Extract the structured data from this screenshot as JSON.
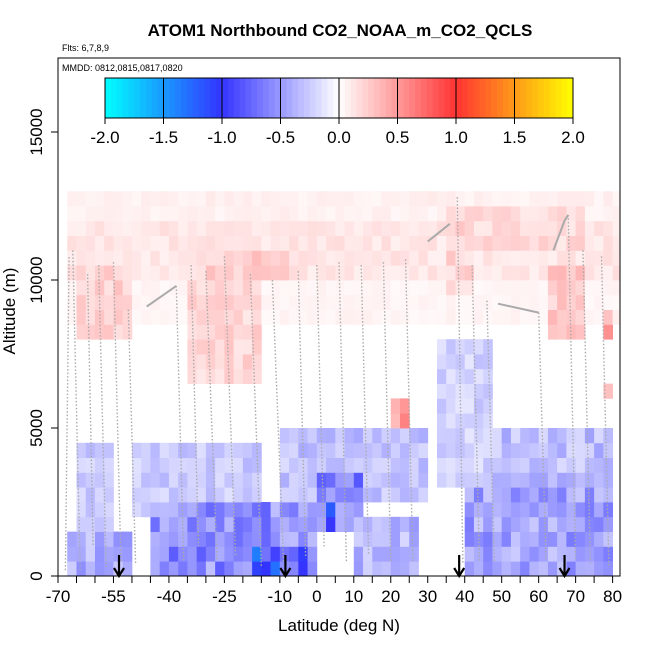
{
  "chart_data": {
    "type": "heatmap",
    "title": "ATOM1 Northbound CO2_NOAA_m_CO2_QCLS",
    "flights_note": "Flts: 6,7,8,9",
    "dates_note": "MMDD: 0812,0815,0817,0820",
    "xlabel": "Latitude (deg N)",
    "ylabel": "Altitude (m)",
    "xlim": [
      -70,
      82
    ],
    "ylim": [
      0,
      17500
    ],
    "x_tick_labels": [
      {
        "value": -70,
        "label": "-70"
      },
      {
        "value": -55,
        "label": "-55"
      },
      {
        "value": -40,
        "label": "-40"
      },
      {
        "value": -25,
        "label": "-25"
      },
      {
        "value": -10,
        "label": "-10"
      },
      {
        "value": 0,
        "label": "0"
      },
      {
        "value": 10,
        "label": "10"
      },
      {
        "value": 20,
        "label": "20"
      },
      {
        "value": 30,
        "label": "30"
      },
      {
        "value": 40,
        "label": "40"
      },
      {
        "value": 50,
        "label": "50"
      },
      {
        "value": 60,
        "label": "60"
      },
      {
        "value": 70,
        "label": "70"
      },
      {
        "value": 80,
        "label": "80"
      }
    ],
    "y_tick_labels": [
      {
        "value": 0,
        "label": "0"
      },
      {
        "value": 5000,
        "label": "5000"
      },
      {
        "value": 10000,
        "label": "10000"
      },
      {
        "value": 15000,
        "label": "15000"
      }
    ],
    "colorbar": {
      "range": [
        -2.0,
        2.0
      ],
      "tick_labels": [
        {
          "value": -2.0,
          "label": "-2.0"
        },
        {
          "value": -1.5,
          "label": "-1.5"
        },
        {
          "value": -1.0,
          "label": "-1.0"
        },
        {
          "value": -0.5,
          "label": "-0.5"
        },
        {
          "value": 0.0,
          "label": "0.0"
        },
        {
          "value": 0.5,
          "label": "0.5"
        },
        {
          "value": 1.0,
          "label": "1.0"
        },
        {
          "value": 1.5,
          "label": "1.5"
        },
        {
          "value": 2.0,
          "label": "2.0"
        }
      ],
      "colors": [
        "#00ffff",
        "#3333ff",
        "#ffffff",
        "#ff3333",
        "#ffff00"
      ]
    },
    "arrow_latitudes": [
      -53.5,
      -8.5,
      38.5,
      67.0
    ],
    "cell_size": {
      "lat": 2.5,
      "alt": 500
    },
    "regions": [
      {
        "lat": [
          -68,
          82
        ],
        "alt": [
          10000,
          12000
        ],
        "value": 0.12
      },
      {
        "lat": [
          -68,
          82
        ],
        "alt": [
          12000,
          12800
        ],
        "value": 0.07
      },
      {
        "lat": [
          -68,
          82
        ],
        "alt": [
          8500,
          10000
        ],
        "value": 0.05
      },
      {
        "lat": [
          -66,
          -50
        ],
        "alt": [
          8000,
          10500
        ],
        "value": 0.22
      },
      {
        "lat": [
          -35,
          -15
        ],
        "alt": [
          6500,
          10000
        ],
        "value": 0.2
      },
      {
        "lat": [
          -30,
          -8
        ],
        "alt": [
          10000,
          11000
        ],
        "value": 0.25
      },
      {
        "lat": [
          20,
          25
        ],
        "alt": [
          5000,
          6000
        ],
        "value": 0.45
      },
      {
        "lat": [
          35,
          42
        ],
        "alt": [
          9500,
          12500
        ],
        "value": 0.2
      },
      {
        "lat": [
          40,
          72
        ],
        "alt": [
          11000,
          12500
        ],
        "value": 0.18
      },
      {
        "lat": [
          63,
          72
        ],
        "alt": [
          8000,
          10500
        ],
        "value": 0.25
      },
      {
        "lat": [
          77,
          80
        ],
        "alt": [
          5800,
          6600
        ],
        "value": 0.35
      },
      {
        "lat": [
          77,
          80
        ],
        "alt": [
          8000,
          9000
        ],
        "value": 0.5
      },
      {
        "lat": [
          -66,
          -55
        ],
        "alt": [
          1500,
          4500
        ],
        "value": -0.25
      },
      {
        "lat": [
          -50,
          -15
        ],
        "alt": [
          2000,
          4500
        ],
        "value": -0.25
      },
      {
        "lat": [
          -10,
          30
        ],
        "alt": [
          2500,
          5000
        ],
        "value": -0.3
      },
      {
        "lat": [
          32,
          48
        ],
        "alt": [
          3000,
          8000
        ],
        "value": -0.22
      },
      {
        "lat": [
          48,
          80
        ],
        "alt": [
          3000,
          5200
        ],
        "value": -0.32
      },
      {
        "lat": [
          -68,
          -50
        ],
        "alt": [
          0,
          1500
        ],
        "value": -0.4
      },
      {
        "lat": [
          -45,
          0
        ],
        "alt": [
          0,
          2500
        ],
        "value": -0.55
      },
      {
        "lat": [
          0,
          12
        ],
        "alt": [
          1500,
          3500
        ],
        "value": -0.6
      },
      {
        "lat": [
          2,
          6
        ],
        "alt": [
          1500,
          2300
        ],
        "value": -0.9
      },
      {
        "lat": [
          10,
          28
        ],
        "alt": [
          0,
          2000
        ],
        "value": -0.35
      },
      {
        "lat": [
          40,
          80
        ],
        "alt": [
          0,
          3000
        ],
        "value": -0.45
      },
      {
        "lat": [
          -18,
          -2
        ],
        "alt": [
          0,
          800
        ],
        "value": -0.95
      }
    ],
    "altitude_profiles": [
      {
        "style": "dotted",
        "points": [
          [
            -68,
            200
          ],
          [
            -67,
            10800
          ]
        ]
      },
      {
        "style": "dotted",
        "points": [
          [
            -66,
            11000
          ],
          [
            -64,
            200
          ]
        ]
      },
      {
        "style": "dotted",
        "points": [
          [
            -62,
            10200
          ],
          [
            -60.5,
            1000
          ]
        ]
      },
      {
        "style": "dotted",
        "points": [
          [
            -59,
            10500
          ],
          [
            -57,
            300
          ]
        ]
      },
      {
        "style": "dotted",
        "points": [
          [
            -55,
            10600
          ],
          [
            -53,
            500
          ]
        ]
      },
      {
        "style": "dotted",
        "points": [
          [
            -51,
            9000
          ],
          [
            -49,
            400
          ]
        ]
      },
      {
        "style": "solid",
        "points": [
          [
            -46,
            9100
          ],
          [
            -38,
            9800
          ]
        ]
      },
      {
        "style": "dotted",
        "points": [
          [
            -38,
            9800
          ],
          [
            -36,
            500
          ]
        ]
      },
      {
        "style": "dotted",
        "points": [
          [
            -34,
            10500
          ],
          [
            -32,
            1000
          ]
        ]
      },
      {
        "style": "dotted",
        "points": [
          [
            -30,
            10300
          ],
          [
            -27,
            500
          ]
        ]
      },
      {
        "style": "dotted",
        "points": [
          [
            -25,
            10800
          ],
          [
            -22,
            700
          ]
        ]
      },
      {
        "style": "dotted",
        "points": [
          [
            -18,
            10200
          ],
          [
            -15,
            300
          ]
        ]
      },
      {
        "style": "dotted",
        "points": [
          [
            -12,
            10000
          ],
          [
            -9,
            500
          ]
        ]
      },
      {
        "style": "dotted",
        "points": [
          [
            -5,
            10300
          ],
          [
            -3,
            600
          ]
        ]
      },
      {
        "style": "dotted",
        "points": [
          [
            0,
            10500
          ],
          [
            2,
            1000
          ]
        ]
      },
      {
        "style": "dotted",
        "points": [
          [
            6,
            10600
          ],
          [
            8,
            500
          ]
        ]
      },
      {
        "style": "dotted",
        "points": [
          [
            12,
            10500
          ],
          [
            14,
            700
          ]
        ]
      },
      {
        "style": "dotted",
        "points": [
          [
            18,
            10600
          ],
          [
            20,
            500
          ]
        ]
      },
      {
        "style": "dotted",
        "points": [
          [
            24,
            10700
          ],
          [
            26,
            500
          ]
        ]
      },
      {
        "style": "solid",
        "points": [
          [
            30,
            11300
          ],
          [
            34,
            11700
          ],
          [
            36,
            11900
          ]
        ]
      },
      {
        "style": "dotted",
        "points": [
          [
            38,
            12800
          ],
          [
            39.5,
            400
          ]
        ]
      },
      {
        "style": "dotted",
        "points": [
          [
            42,
            10500
          ],
          [
            44,
            500
          ]
        ]
      },
      {
        "style": "dotted",
        "points": [
          [
            46,
            9300
          ],
          [
            48,
            500
          ]
        ]
      },
      {
        "style": "solid",
        "points": [
          [
            49,
            9200
          ],
          [
            60,
            8900
          ]
        ]
      },
      {
        "style": "dotted",
        "points": [
          [
            60,
            8900
          ],
          [
            62,
            500
          ]
        ]
      },
      {
        "style": "solid",
        "points": [
          [
            64,
            11000
          ],
          [
            67,
            12000
          ],
          [
            68,
            12200
          ]
        ]
      },
      {
        "style": "dotted",
        "points": [
          [
            68,
            12200
          ],
          [
            70,
            500
          ]
        ]
      },
      {
        "style": "dotted",
        "points": [
          [
            72,
            11000
          ],
          [
            74,
            400
          ]
        ]
      },
      {
        "style": "dotted",
        "points": [
          [
            77,
            10800
          ],
          [
            79,
            300
          ]
        ]
      }
    ]
  }
}
